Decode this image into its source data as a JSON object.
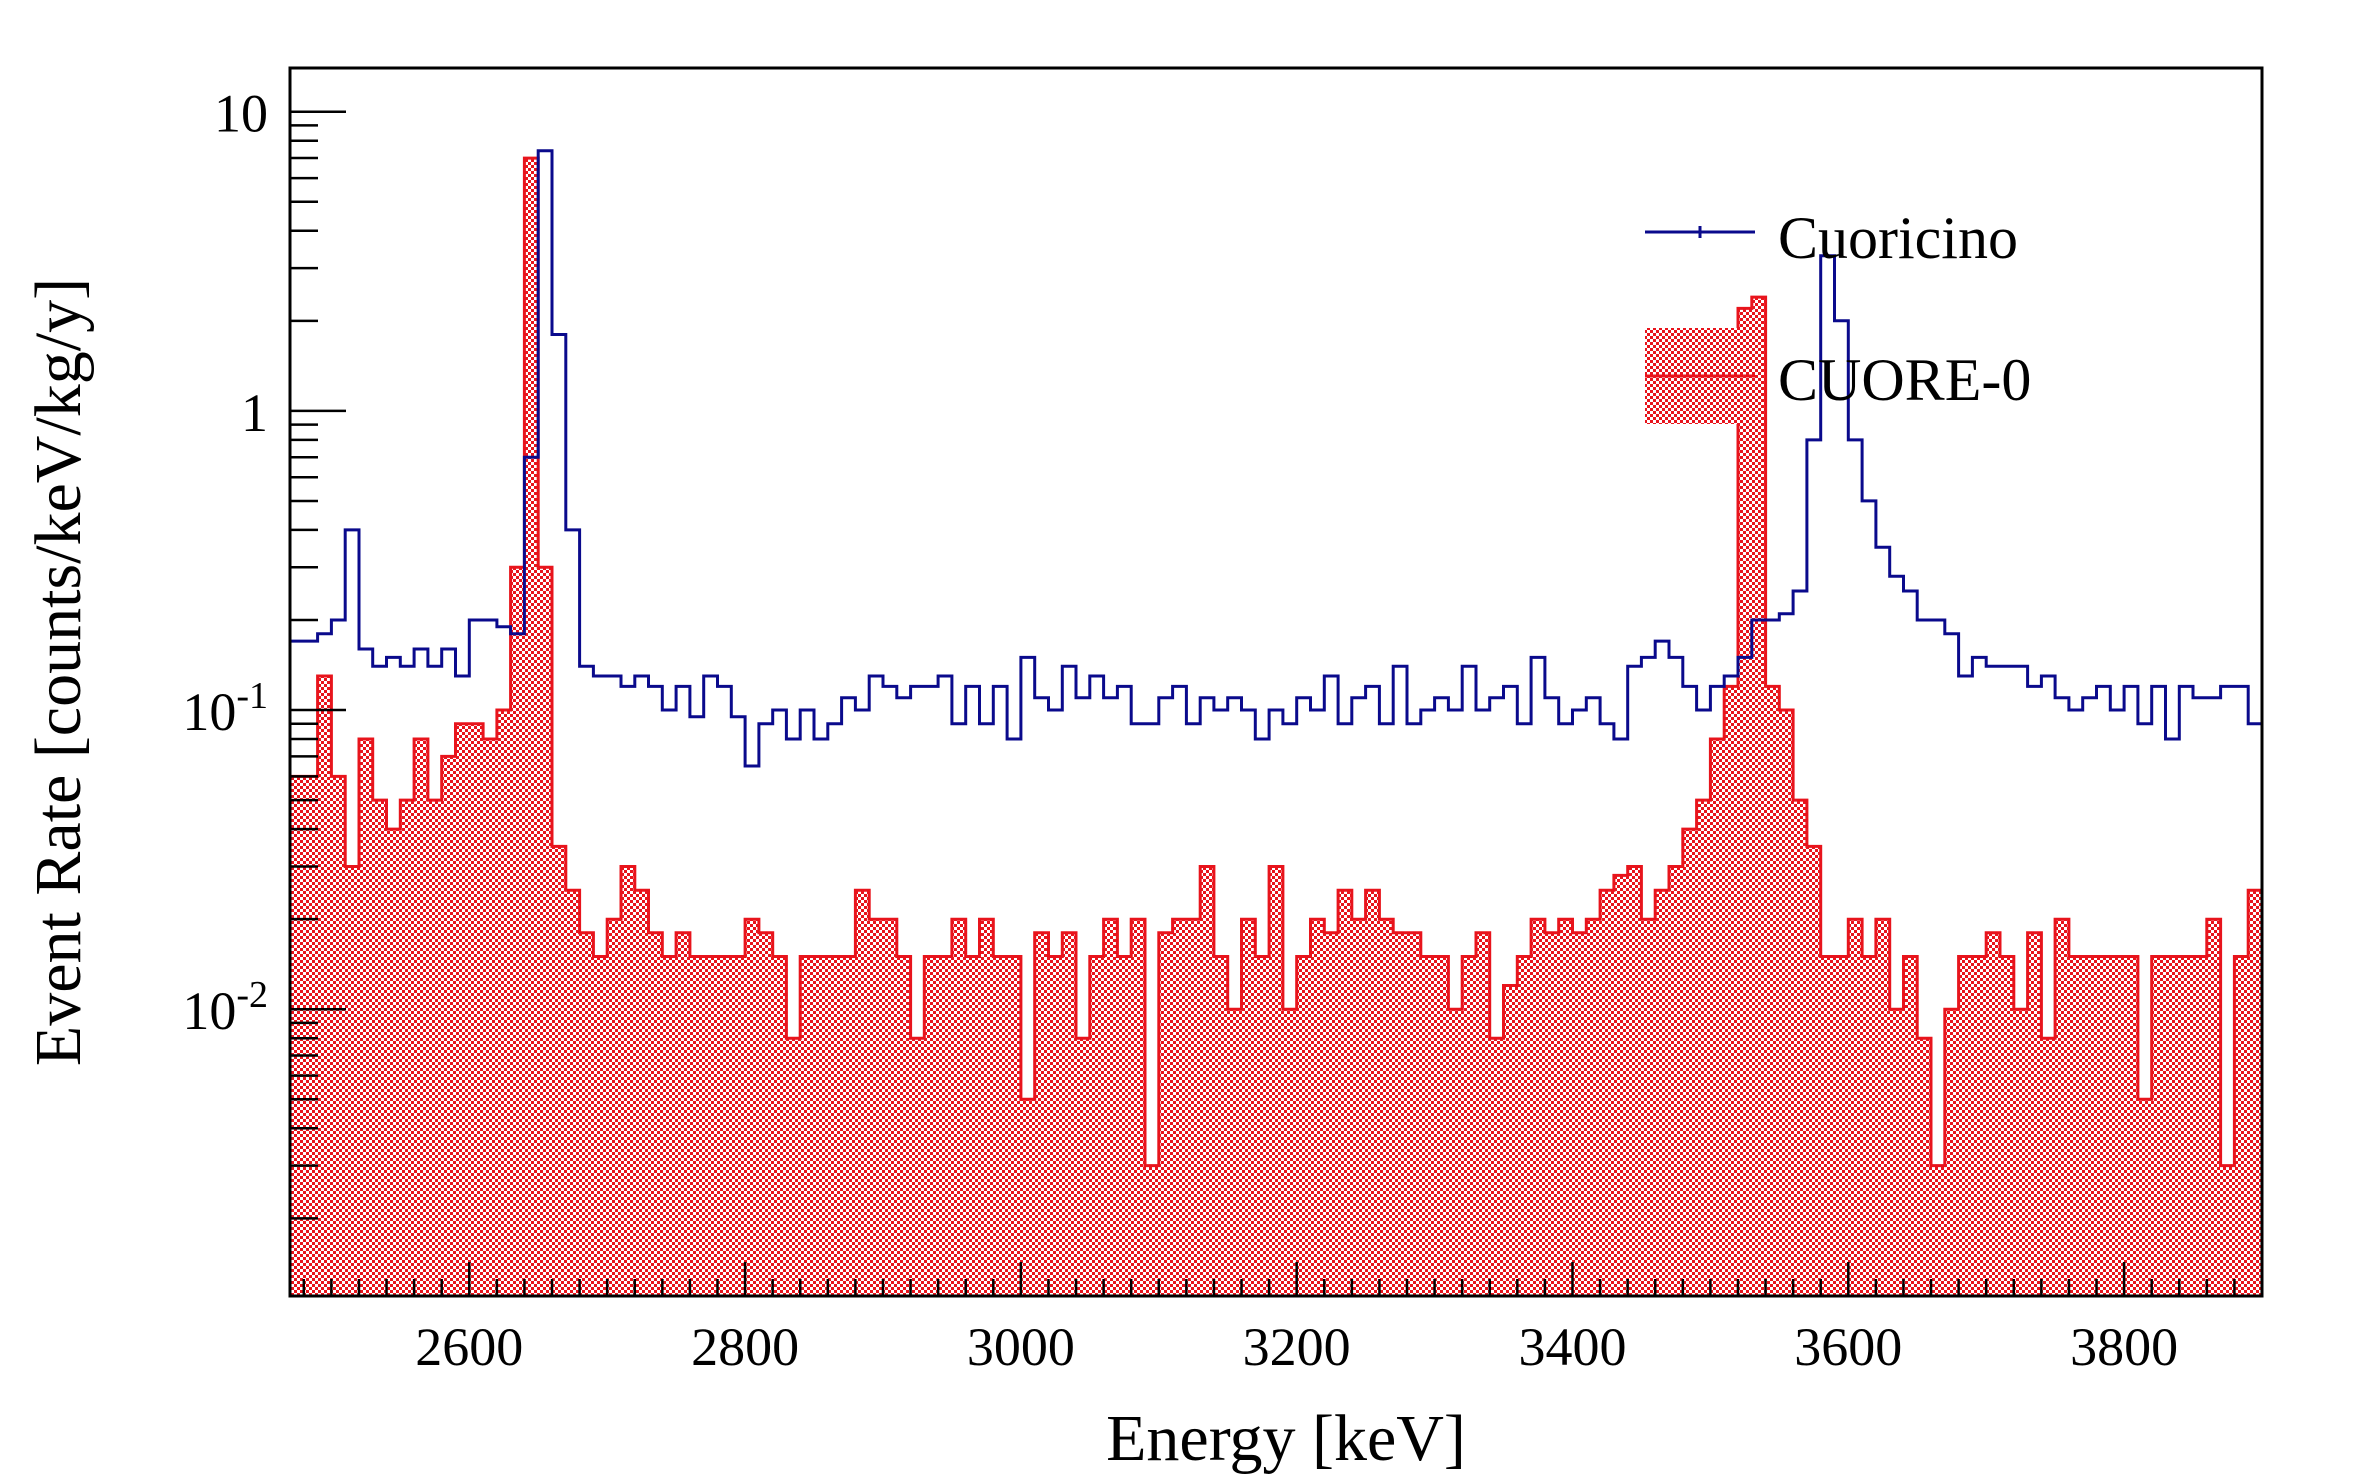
{
  "chart_data": {
    "type": "histogram",
    "title": "",
    "xlabel": "Energy [keV]",
    "ylabel": "Event Rate [counts/keV/kg/y]",
    "xlim": [
      2470,
      3900
    ],
    "ylim": [
      0.0011,
      14
    ],
    "yscale": "log",
    "bin_width": 10,
    "x_ticks": [
      2600,
      2800,
      3000,
      3200,
      3400,
      3600,
      3800
    ],
    "x_tick_labels": [
      "2600",
      "2800",
      "3000",
      "3200",
      "3400",
      "3600",
      "3800"
    ],
    "y_ticks": [
      0.01,
      0.1,
      1,
      10
    ],
    "y_tick_labels": [
      {
        "base": "10",
        "exp": "-2"
      },
      {
        "base": "10",
        "exp": "-1"
      },
      {
        "base": "1",
        "exp": ""
      },
      {
        "base": "10",
        "exp": ""
      }
    ],
    "legend_position": "top-right",
    "series": [
      {
        "name": "Cuoricino",
        "color": "#0a0a8c",
        "style": "step-line",
        "x_start": 2470,
        "values": [
          0.17,
          0.17,
          0.18,
          0.2,
          0.4,
          0.16,
          0.14,
          0.15,
          0.14,
          0.16,
          0.14,
          0.16,
          0.13,
          0.2,
          0.2,
          0.19,
          0.18,
          0.7,
          7.4,
          1.8,
          0.4,
          0.14,
          0.13,
          0.13,
          0.12,
          0.13,
          0.12,
          0.1,
          0.12,
          0.095,
          0.13,
          0.12,
          0.095,
          0.065,
          0.09,
          0.1,
          0.08,
          0.1,
          0.08,
          0.09,
          0.11,
          0.1,
          0.13,
          0.12,
          0.11,
          0.12,
          0.12,
          0.13,
          0.09,
          0.12,
          0.09,
          0.12,
          0.08,
          0.15,
          0.11,
          0.1,
          0.14,
          0.11,
          0.13,
          0.11,
          0.12,
          0.09,
          0.09,
          0.11,
          0.12,
          0.09,
          0.11,
          0.1,
          0.11,
          0.1,
          0.08,
          0.1,
          0.09,
          0.11,
          0.1,
          0.13,
          0.09,
          0.11,
          0.12,
          0.09,
          0.14,
          0.09,
          0.1,
          0.11,
          0.1,
          0.14,
          0.1,
          0.11,
          0.12,
          0.09,
          0.15,
          0.11,
          0.09,
          0.1,
          0.11,
          0.09,
          0.08,
          0.14,
          0.15,
          0.17,
          0.15,
          0.12,
          0.1,
          0.12,
          0.13,
          0.15,
          0.2,
          0.2,
          0.21,
          0.25,
          0.8,
          3.3,
          2.0,
          0.8,
          0.5,
          0.35,
          0.28,
          0.25,
          0.2,
          0.2,
          0.18,
          0.13,
          0.15,
          0.14,
          0.14,
          0.14,
          0.12,
          0.13,
          0.11,
          0.1,
          0.11,
          0.12,
          0.1,
          0.12,
          0.09,
          0.12,
          0.08,
          0.12,
          0.11,
          0.11,
          0.12,
          0.12,
          0.09,
          0.12,
          0.1,
          0.12,
          0.11,
          0.08,
          0.07,
          0.09,
          0.1,
          0.11,
          0.1,
          0.11,
          0.09,
          0.12,
          0.1,
          0.13,
          0.1,
          0.09,
          0.12,
          0.1,
          0.13,
          0.11,
          0.11,
          0.13,
          0.1,
          0.11,
          0.09,
          0.09,
          0.09,
          0.11,
          0.1,
          0.11,
          0.1,
          0.1,
          0.11,
          0.11,
          0.12,
          0.1,
          0.1,
          0.11,
          0.11,
          0.12,
          0.08,
          0.11,
          0.1,
          0.1,
          0.09,
          0.12,
          0.1,
          0.18,
          0.14
        ]
      },
      {
        "name": "CUORE-0",
        "color": "#e8141c",
        "style": "filled-hatched",
        "x_start": 2470,
        "values": [
          0.06,
          0.06,
          0.13,
          0.06,
          0.03,
          0.08,
          0.05,
          0.04,
          0.05,
          0.08,
          0.05,
          0.07,
          0.09,
          0.09,
          0.08,
          0.1,
          0.3,
          7.0,
          0.3,
          0.035,
          0.025,
          0.018,
          0.015,
          0.02,
          0.03,
          0.025,
          0.018,
          0.015,
          0.018,
          0.015,
          0.015,
          0.015,
          0.015,
          0.02,
          0.018,
          0.015,
          0.008,
          0.015,
          0.015,
          0.015,
          0.015,
          0.025,
          0.02,
          0.02,
          0.015,
          0.008,
          0.015,
          0.015,
          0.02,
          0.015,
          0.02,
          0.015,
          0.015,
          0.005,
          0.018,
          0.015,
          0.018,
          0.008,
          0.015,
          0.02,
          0.015,
          0.02,
          0.003,
          0.018,
          0.02,
          0.02,
          0.03,
          0.015,
          0.01,
          0.02,
          0.015,
          0.03,
          0.01,
          0.015,
          0.02,
          0.018,
          0.025,
          0.02,
          0.025,
          0.02,
          0.018,
          0.018,
          0.015,
          0.015,
          0.01,
          0.015,
          0.018,
          0.008,
          0.012,
          0.015,
          0.02,
          0.018,
          0.02,
          0.018,
          0.02,
          0.025,
          0.028,
          0.03,
          0.02,
          0.025,
          0.03,
          0.04,
          0.05,
          0.08,
          0.12,
          2.2,
          2.4,
          0.12,
          0.1,
          0.05,
          0.035,
          0.015,
          0.015,
          0.02,
          0.015,
          0.02,
          0.01,
          0.015,
          0.008,
          0.003,
          0.01,
          0.015,
          0.015,
          0.018,
          0.015,
          0.01,
          0.018,
          0.008,
          0.02,
          0.015,
          0.015,
          0.015,
          0.015,
          0.015,
          0.005,
          0.015,
          0.015,
          0.015,
          0.015,
          0.02,
          0.003,
          0.015,
          0.025,
          0.02,
          0.01,
          0.02,
          0.018,
          0.01,
          0.015,
          0.02,
          0.015,
          0.01,
          0.015,
          0.01,
          0.02,
          0.018,
          0.015,
          0.02,
          0.015,
          0.025,
          0.015,
          0.01,
          0.012,
          0.015,
          0.015,
          0.01,
          0.015,
          0.008,
          0.015,
          0.015,
          0.02,
          0.012,
          0.02,
          0.015,
          0.015,
          0.01,
          0.008,
          0.015,
          0.015,
          0.012,
          0.015,
          0.018,
          0.015,
          0.015,
          0.02,
          0.015,
          0.01,
          0.012,
          0.018,
          0.015,
          0.003,
          0.012,
          0.012,
          0.003,
          0.025
        ]
      }
    ]
  }
}
